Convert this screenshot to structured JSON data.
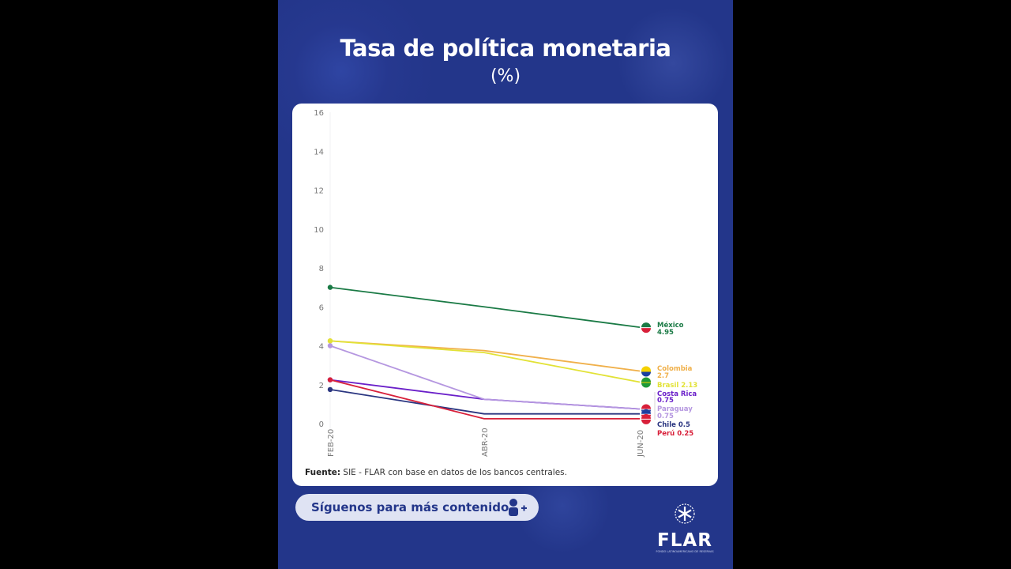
{
  "header": {
    "title": "Tasa de política monetaria",
    "subtitle": "(%)"
  },
  "source": {
    "label": "Fuente:",
    "text": " SIE - FLAR con base en datos de los bancos centrales."
  },
  "cta": {
    "label": "Síguenos para más contenido",
    "icon": "add-user-icon"
  },
  "logo": {
    "name": "FLAR",
    "tagline": "FONDO LATINOAMERICANO DE RESERVAS"
  },
  "chart_data": {
    "type": "line",
    "title": "Tasa de política monetaria",
    "subtitle": "(%)",
    "xlabel": "",
    "ylabel": "%",
    "ylim": [
      0,
      16
    ],
    "yticks": [
      0,
      2,
      4,
      6,
      8,
      10,
      12,
      14,
      16
    ],
    "grid": false,
    "categories": [
      "FEB-20",
      "ABR-20",
      "JUN-20"
    ],
    "series": [
      {
        "name": "México",
        "color": "#1a7a45",
        "values": [
          7.0,
          6.0,
          4.95
        ],
        "end_label": "México",
        "end_value": "4.95"
      },
      {
        "name": "Colombia",
        "color": "#f0b04a",
        "values": [
          4.25,
          3.75,
          2.7
        ],
        "end_label": "Colombia",
        "end_value": "2.7"
      },
      {
        "name": "Brasil",
        "color": "#e2e236",
        "values": [
          4.25,
          3.65,
          2.13
        ],
        "end_label": "Brasil",
        "end_value": "2.13"
      },
      {
        "name": "Costa Rica",
        "color": "#6a1fc9",
        "values": [
          2.25,
          1.25,
          0.75
        ],
        "end_label": "Costa Rica",
        "end_value": "0.75"
      },
      {
        "name": "Paraguay",
        "color": "#b597e0",
        "values": [
          4.0,
          1.25,
          0.75
        ],
        "end_label": "Paraguay",
        "end_value": "0.75"
      },
      {
        "name": "Chile",
        "color": "#2a3580",
        "values": [
          1.75,
          0.5,
          0.5
        ],
        "end_label": "Chile",
        "end_value": "0.5"
      },
      {
        "name": "Perú",
        "color": "#d8203a",
        "values": [
          2.25,
          0.25,
          0.25
        ],
        "end_label": "Perú",
        "end_value": "0.25"
      }
    ],
    "legend_position": "end-of-line labels",
    "source": "Fuente: SIE - FLAR con base en datos de los bancos centrales."
  }
}
